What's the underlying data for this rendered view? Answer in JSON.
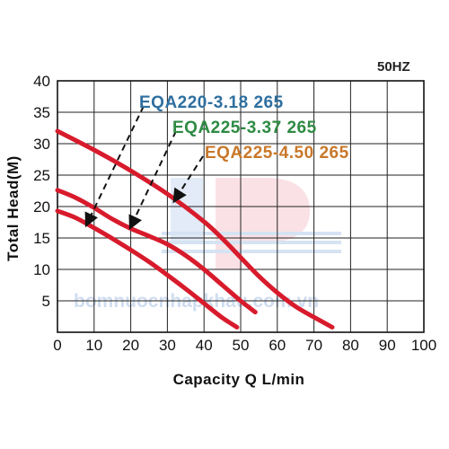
{
  "watermark_text": "bomnuocnhapkhau.com.vn",
  "chart_data": {
    "type": "line",
    "title": "",
    "frequency_label": "50HZ",
    "xlabel": "Capacity   Q  L/min",
    "ylabel": "Total  Head(M)",
    "xlim": [
      0,
      100
    ],
    "ylim": [
      0,
      40
    ],
    "x_ticks": [
      0,
      10,
      20,
      30,
      40,
      50,
      60,
      70,
      80,
      90,
      100
    ],
    "y_ticks": [
      5,
      10,
      15,
      20,
      25,
      30,
      35,
      40
    ],
    "grid": true,
    "curve_color": "#d81b2c",
    "series": [
      {
        "name": "EQA220-3.18  265",
        "label_color": "#2f6f9f",
        "x": [
          0,
          5,
          10,
          15,
          20,
          25,
          30,
          35,
          40,
          45,
          49
        ],
        "y": [
          19.3,
          18.2,
          16.6,
          14.9,
          13.1,
          11.2,
          9.1,
          6.9,
          4.6,
          2.3,
          0.8
        ]
      },
      {
        "name": "EQA225-3.37  265",
        "label_color": "#2e8a43",
        "x": [
          0,
          5,
          10,
          15,
          20,
          25,
          30,
          35,
          40,
          45,
          50,
          54
        ],
        "y": [
          22.6,
          21.4,
          19.8,
          18.0,
          16.5,
          15.3,
          14.0,
          12.2,
          10.0,
          7.5,
          5.0,
          3.2
        ]
      },
      {
        "name": "EQA225-4.50  265",
        "label_color": "#c8782a",
        "x": [
          0,
          10,
          20,
          30,
          40,
          45,
          50,
          55,
          60,
          65,
          70,
          75
        ],
        "y": [
          32.0,
          29.0,
          25.7,
          22.0,
          17.6,
          14.9,
          11.9,
          8.9,
          6.3,
          4.1,
          2.4,
          0.8
        ]
      }
    ]
  }
}
